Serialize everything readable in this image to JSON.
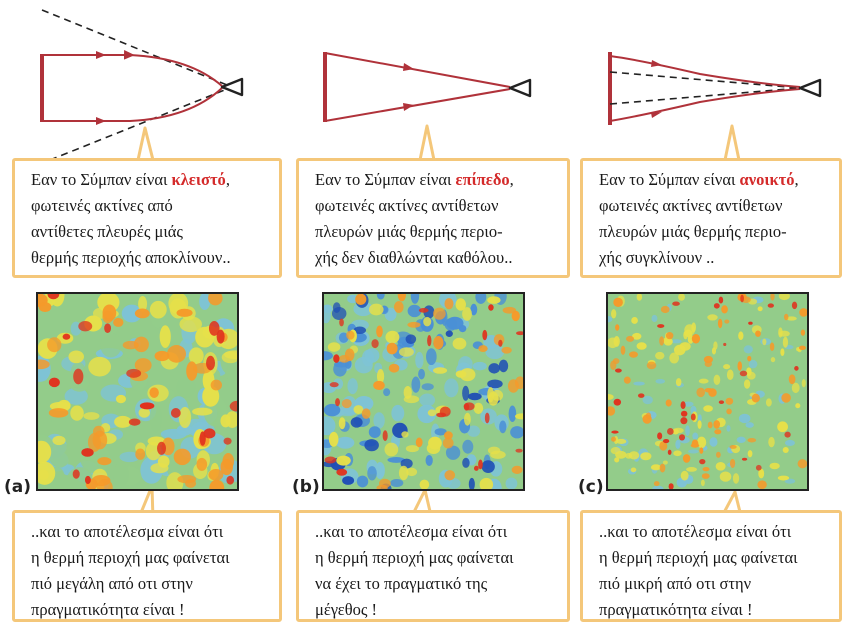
{
  "panels": [
    {
      "label": "(a)",
      "top_text": {
        "line1_prefix": "Εαν το Σύμπαν είναι ",
        "highlight": "κλειστό",
        "line1_suffix": ",",
        "lines": [
          "φωτεινές ακτίνες από",
          "αντίθετες πλευρές μιάς",
          "θερμής περιοχής αποκλίνουν.."
        ]
      },
      "bottom_lines": [
        "..και το αποτέλεσμα είναι ότι",
        "η θερμή περιοχή μας φαίνεται",
        "πιό μεγάλη από οτι στην",
        "πραγματικότητα  είναι !"
      ]
    },
    {
      "label": "(b)",
      "top_text": {
        "line1_prefix": "Εαν το Σύμπαν είναι ",
        "highlight": "επίπεδο",
        "line1_suffix": ",",
        "lines": [
          "φωτεινές ακτίνες αντίθετων",
          "πλευρών μιάς θερμής περιο-",
          "χής δεν διαθλώνται καθόλου.."
        ]
      },
      "bottom_lines": [
        "..και το αποτέλεσμα είναι ότι",
        "η θερμή περιοχή μας φαίνεται",
        "να έχει το πραγματικό της",
        "μέγεθος !"
      ]
    },
    {
      "label": "(c)",
      "top_text": {
        "line1_prefix": "Εαν το Σύμπαν είναι ",
        "highlight": "ανοικτό",
        "line1_suffix": ",",
        "lines": [
          "φωτεινές ακτίνες αντίθετων",
          "πλευρών μιάς θερμής περιο-",
          "χής συγκλίνουν .."
        ]
      },
      "bottom_lines": [
        "..και το αποτέλεσμα είναι ότι",
        "η θερμή περιοχή μας φαίνεται",
        "πιό μικρή από οτι στην",
        "πραγματικότητα  είναι !"
      ]
    }
  ],
  "colors": {
    "ray_red": "#b0323a",
    "box_border": "#f4c77a",
    "highlight_red": "#d42a2a",
    "map_palette": [
      "#1f4fb5",
      "#4a8fd6",
      "#7ec3d6",
      "#93cc8a",
      "#e6e04a",
      "#f59a2a",
      "#e0321e"
    ]
  },
  "icons": [
    "eye-icon",
    "eye-icon",
    "eye-icon"
  ]
}
